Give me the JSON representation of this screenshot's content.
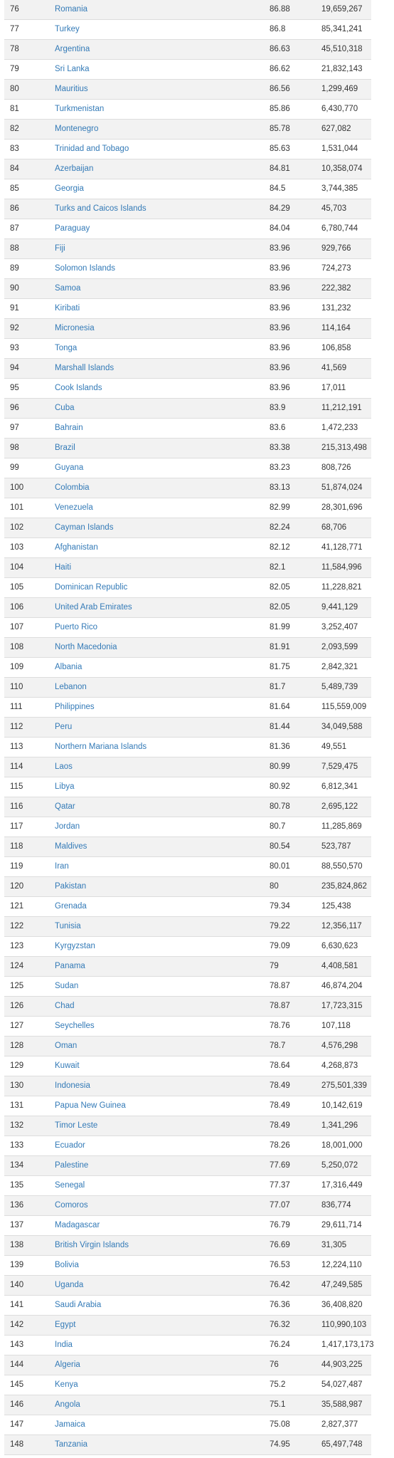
{
  "table": {
    "rows": [
      {
        "rank": "76",
        "country": "Romania",
        "score": "86.88",
        "population": "19,659,267"
      },
      {
        "rank": "77",
        "country": "Turkey",
        "score": "86.8",
        "population": "85,341,241"
      },
      {
        "rank": "78",
        "country": "Argentina",
        "score": "86.63",
        "population": "45,510,318"
      },
      {
        "rank": "79",
        "country": "Sri Lanka",
        "score": "86.62",
        "population": "21,832,143"
      },
      {
        "rank": "80",
        "country": "Mauritius",
        "score": "86.56",
        "population": "1,299,469"
      },
      {
        "rank": "81",
        "country": "Turkmenistan",
        "score": "85.86",
        "population": "6,430,770"
      },
      {
        "rank": "82",
        "country": "Montenegro",
        "score": "85.78",
        "population": "627,082"
      },
      {
        "rank": "83",
        "country": "Trinidad and Tobago",
        "score": "85.63",
        "population": "1,531,044"
      },
      {
        "rank": "84",
        "country": "Azerbaijan",
        "score": "84.81",
        "population": "10,358,074"
      },
      {
        "rank": "85",
        "country": "Georgia",
        "score": "84.5",
        "population": "3,744,385"
      },
      {
        "rank": "86",
        "country": "Turks and Caicos Islands",
        "score": "84.29",
        "population": "45,703"
      },
      {
        "rank": "87",
        "country": "Paraguay",
        "score": "84.04",
        "population": "6,780,744"
      },
      {
        "rank": "88",
        "country": "Fiji",
        "score": "83.96",
        "population": "929,766"
      },
      {
        "rank": "89",
        "country": "Solomon Islands",
        "score": "83.96",
        "population": "724,273"
      },
      {
        "rank": "90",
        "country": "Samoa",
        "score": "83.96",
        "population": "222,382"
      },
      {
        "rank": "91",
        "country": "Kiribati",
        "score": "83.96",
        "population": "131,232"
      },
      {
        "rank": "92",
        "country": "Micronesia",
        "score": "83.96",
        "population": "114,164"
      },
      {
        "rank": "93",
        "country": "Tonga",
        "score": "83.96",
        "population": "106,858"
      },
      {
        "rank": "94",
        "country": "Marshall Islands",
        "score": "83.96",
        "population": "41,569"
      },
      {
        "rank": "95",
        "country": "Cook Islands",
        "score": "83.96",
        "population": "17,011"
      },
      {
        "rank": "96",
        "country": "Cuba",
        "score": "83.9",
        "population": "11,212,191"
      },
      {
        "rank": "97",
        "country": "Bahrain",
        "score": "83.6",
        "population": "1,472,233"
      },
      {
        "rank": "98",
        "country": "Brazil",
        "score": "83.38",
        "population": "215,313,498"
      },
      {
        "rank": "99",
        "country": "Guyana",
        "score": "83.23",
        "population": "808,726"
      },
      {
        "rank": "100",
        "country": "Colombia",
        "score": "83.13",
        "population": "51,874,024"
      },
      {
        "rank": "101",
        "country": "Venezuela",
        "score": "82.99",
        "population": "28,301,696"
      },
      {
        "rank": "102",
        "country": "Cayman Islands",
        "score": "82.24",
        "population": "68,706"
      },
      {
        "rank": "103",
        "country": "Afghanistan",
        "score": "82.12",
        "population": "41,128,771"
      },
      {
        "rank": "104",
        "country": "Haiti",
        "score": "82.1",
        "population": "11,584,996"
      },
      {
        "rank": "105",
        "country": "Dominican Republic",
        "score": "82.05",
        "population": "11,228,821"
      },
      {
        "rank": "106",
        "country": "United Arab Emirates",
        "score": "82.05",
        "population": "9,441,129"
      },
      {
        "rank": "107",
        "country": "Puerto Rico",
        "score": "81.99",
        "population": "3,252,407"
      },
      {
        "rank": "108",
        "country": "North Macedonia",
        "score": "81.91",
        "population": "2,093,599"
      },
      {
        "rank": "109",
        "country": "Albania",
        "score": "81.75",
        "population": "2,842,321"
      },
      {
        "rank": "110",
        "country": "Lebanon",
        "score": "81.7",
        "population": "5,489,739"
      },
      {
        "rank": "111",
        "country": "Philippines",
        "score": "81.64",
        "population": "115,559,009"
      },
      {
        "rank": "112",
        "country": "Peru",
        "score": "81.44",
        "population": "34,049,588"
      },
      {
        "rank": "113",
        "country": "Northern Mariana Islands",
        "score": "81.36",
        "population": "49,551"
      },
      {
        "rank": "114",
        "country": "Laos",
        "score": "80.99",
        "population": "7,529,475"
      },
      {
        "rank": "115",
        "country": "Libya",
        "score": "80.92",
        "population": "6,812,341"
      },
      {
        "rank": "116",
        "country": "Qatar",
        "score": "80.78",
        "population": "2,695,122"
      },
      {
        "rank": "117",
        "country": "Jordan",
        "score": "80.7",
        "population": "11,285,869"
      },
      {
        "rank": "118",
        "country": "Maldives",
        "score": "80.54",
        "population": "523,787"
      },
      {
        "rank": "119",
        "country": "Iran",
        "score": "80.01",
        "population": "88,550,570"
      },
      {
        "rank": "120",
        "country": "Pakistan",
        "score": "80",
        "population": "235,824,862"
      },
      {
        "rank": "121",
        "country": "Grenada",
        "score": "79.34",
        "population": "125,438"
      },
      {
        "rank": "122",
        "country": "Tunisia",
        "score": "79.22",
        "population": "12,356,117"
      },
      {
        "rank": "123",
        "country": "Kyrgyzstan",
        "score": "79.09",
        "population": "6,630,623"
      },
      {
        "rank": "124",
        "country": "Panama",
        "score": "79",
        "population": "4,408,581"
      },
      {
        "rank": "125",
        "country": "Sudan",
        "score": "78.87",
        "population": "46,874,204"
      },
      {
        "rank": "126",
        "country": "Chad",
        "score": "78.87",
        "population": "17,723,315"
      },
      {
        "rank": "127",
        "country": "Seychelles",
        "score": "78.76",
        "population": "107,118"
      },
      {
        "rank": "128",
        "country": "Oman",
        "score": "78.7",
        "population": "4,576,298"
      },
      {
        "rank": "129",
        "country": "Kuwait",
        "score": "78.64",
        "population": "4,268,873"
      },
      {
        "rank": "130",
        "country": "Indonesia",
        "score": "78.49",
        "population": "275,501,339"
      },
      {
        "rank": "131",
        "country": "Papua New Guinea",
        "score": "78.49",
        "population": "10,142,619"
      },
      {
        "rank": "132",
        "country": "Timor Leste",
        "score": "78.49",
        "population": "1,341,296"
      },
      {
        "rank": "133",
        "country": "Ecuador",
        "score": "78.26",
        "population": "18,001,000"
      },
      {
        "rank": "134",
        "country": "Palestine",
        "score": "77.69",
        "population": "5,250,072"
      },
      {
        "rank": "135",
        "country": "Senegal",
        "score": "77.37",
        "population": "17,316,449"
      },
      {
        "rank": "136",
        "country": "Comoros",
        "score": "77.07",
        "population": "836,774"
      },
      {
        "rank": "137",
        "country": "Madagascar",
        "score": "76.79",
        "population": "29,611,714"
      },
      {
        "rank": "138",
        "country": "British Virgin Islands",
        "score": "76.69",
        "population": "31,305"
      },
      {
        "rank": "139",
        "country": "Bolivia",
        "score": "76.53",
        "population": "12,224,110"
      },
      {
        "rank": "140",
        "country": "Uganda",
        "score": "76.42",
        "population": "47,249,585"
      },
      {
        "rank": "141",
        "country": "Saudi Arabia",
        "score": "76.36",
        "population": "36,408,820"
      },
      {
        "rank": "142",
        "country": "Egypt",
        "score": "76.32",
        "population": "110,990,103"
      },
      {
        "rank": "143",
        "country": "India",
        "score": "76.24",
        "population": "1,417,173,173"
      },
      {
        "rank": "144",
        "country": "Algeria",
        "score": "76",
        "population": "44,903,225"
      },
      {
        "rank": "145",
        "country": "Kenya",
        "score": "75.2",
        "population": "54,027,487"
      },
      {
        "rank": "146",
        "country": "Angola",
        "score": "75.1",
        "population": "35,588,987"
      },
      {
        "rank": "147",
        "country": "Jamaica",
        "score": "75.08",
        "population": "2,827,377"
      },
      {
        "rank": "148",
        "country": "Tanzania",
        "score": "74.95",
        "population": "65,497,748"
      }
    ]
  }
}
